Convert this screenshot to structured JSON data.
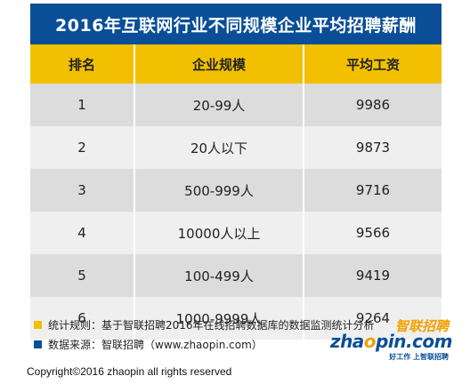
{
  "chart_data": {
    "type": "table",
    "title": "2016年互联网行业不同规模企业平均招聘薪酬",
    "columns": [
      "排名",
      "企业规模",
      "平均工资"
    ],
    "rows": [
      [
        "1",
        "20-99人",
        "9986"
      ],
      [
        "2",
        "20人以下",
        "9873"
      ],
      [
        "3",
        "500-999人",
        "9716"
      ],
      [
        "4",
        "10000人以上",
        "9566"
      ],
      [
        "5",
        "100-499人",
        "9419"
      ],
      [
        "6",
        "1000-9999人",
        "9264"
      ]
    ]
  },
  "notes": {
    "rule": "统计规则：基于智联招聘2016年在线招聘数据库的数据监测统计分析",
    "source": "数据来源：智联招聘（www.zhaopin.com）"
  },
  "logo": {
    "chinese": "智联招聘",
    "brand_pre": "zha",
    "brand_o": "o",
    "brand_post": "pin.com",
    "slogan": "好工作 上智联招聘"
  },
  "colors": {
    "header_blue": "#0a4e97",
    "accent_yellow": "#f2c000"
  },
  "copyright": "Copyright©2016 zhaopin all rights reserved"
}
